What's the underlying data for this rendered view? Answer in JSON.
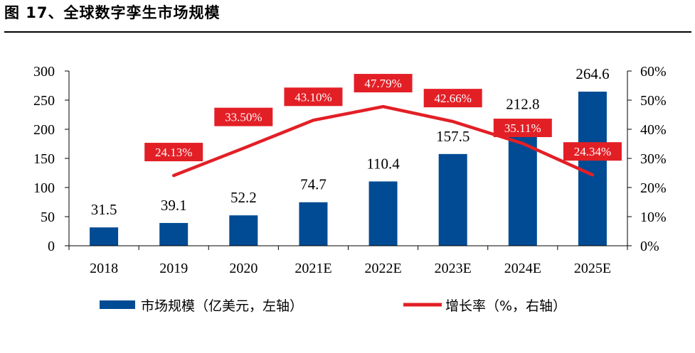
{
  "figure": {
    "title": "图 17、全球数字孪生市场规模"
  },
  "chart_data": {
    "type": "bar",
    "categories": [
      "2018",
      "2019",
      "2020",
      "2021E",
      "2022E",
      "2023E",
      "2024E",
      "2025E"
    ],
    "series": [
      {
        "name": "市场规模（亿美元，左轴）",
        "type": "bar",
        "axis": "left",
        "values": [
          31.5,
          39.1,
          52.2,
          74.7,
          110.4,
          157.5,
          212.8,
          264.6
        ],
        "value_labels": [
          "31.5",
          "39.1",
          "52.2",
          "74.7",
          "110.4",
          "157.5",
          "212.8",
          "264.6"
        ],
        "color": "#004B93"
      },
      {
        "name": "增长率（%，右轴）",
        "type": "line",
        "axis": "right",
        "values": [
          null,
          24.13,
          33.5,
          43.1,
          47.79,
          42.66,
          35.11,
          24.34
        ],
        "value_labels": [
          "",
          "24.13%",
          "33.50%",
          "43.10%",
          "47.79%",
          "42.66%",
          "35.11%",
          "24.34%"
        ],
        "color": "#E31F26"
      }
    ],
    "y_left": {
      "ylim": [
        0,
        300
      ],
      "ticks": [
        "0",
        "50",
        "100",
        "150",
        "200",
        "250",
        "300"
      ]
    },
    "y_right": {
      "ylim": [
        0,
        60
      ],
      "ticks": [
        "0%",
        "10%",
        "20%",
        "30%",
        "40%",
        "50%",
        "60%"
      ]
    },
    "grid": false,
    "legend_position": "bottom"
  }
}
